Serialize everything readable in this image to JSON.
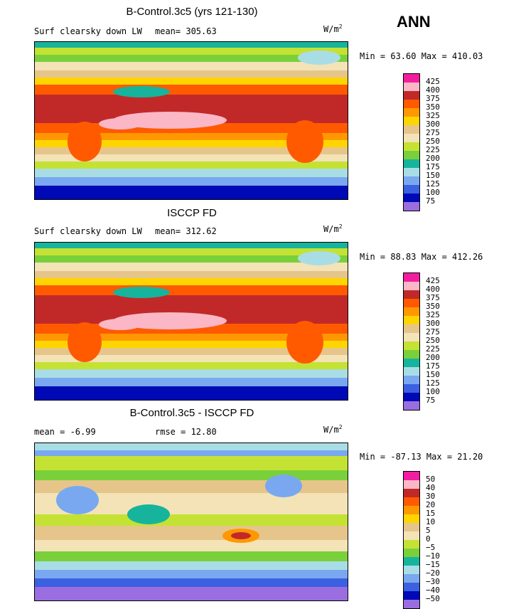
{
  "season": "ANN",
  "panels": [
    {
      "title": "B-Control.3c5 (yrs 121-130)",
      "left_label": "Surf clearsky down LW",
      "mid_label": "mean= 305.63",
      "units": "W/m",
      "units_sup": "2",
      "minmax": "Min =  63.60 Max = 410.03",
      "levels": [
        "425",
        "400",
        "375",
        "350",
        "325",
        "300",
        "275",
        "250",
        "225",
        "200",
        "175",
        "150",
        "125",
        "100",
        "75"
      ],
      "colors": [
        "#f21ea0",
        "#fbb7c6",
        "#c12929",
        "#ff5a00",
        "#ff9800",
        "#ffd500",
        "#e6c58a",
        "#f3e3b7",
        "#c4e234",
        "#7ad03a",
        "#16b49d",
        "#a9dde5",
        "#79a8f0",
        "#3b60e0",
        "#0009b6",
        "#9a6ee0"
      ]
    },
    {
      "title": "ISCCP FD",
      "left_label": "Surf clearsky down LW",
      "mid_label": "mean= 312.62",
      "units": "W/m",
      "units_sup": "2",
      "minmax": "Min =  88.83 Max = 412.26",
      "levels": [
        "425",
        "400",
        "375",
        "350",
        "325",
        "300",
        "275",
        "250",
        "225",
        "200",
        "175",
        "150",
        "125",
        "100",
        "75"
      ],
      "colors": [
        "#f21ea0",
        "#fbb7c6",
        "#c12929",
        "#ff5a00",
        "#ff9800",
        "#ffd500",
        "#e6c58a",
        "#f3e3b7",
        "#c4e234",
        "#7ad03a",
        "#16b49d",
        "#a9dde5",
        "#79a8f0",
        "#3b60e0",
        "#0009b6",
        "#9a6ee0"
      ]
    },
    {
      "title": "B-Control.3c5 - ISCCP FD",
      "left_label": "mean =  -6.99",
      "mid_label": "rmse =  12.80",
      "units": "W/m",
      "units_sup": "2",
      "minmax": "Min = -87.13 Max =  21.20",
      "levels": [
        "50",
        "40",
        "30",
        "20",
        "15",
        "10",
        "5",
        "0",
        "−5",
        "−10",
        "−15",
        "−20",
        "−30",
        "−40",
        "−50"
      ],
      "colors": [
        "#f21ea0",
        "#fbb7c6",
        "#c12929",
        "#ff5a00",
        "#ff9800",
        "#ffd500",
        "#e6c58a",
        "#f3e3b7",
        "#c4e234",
        "#7ad03a",
        "#16b49d",
        "#a9dde5",
        "#79a8f0",
        "#3b60e0",
        "#0009b6",
        "#9a6ee0"
      ]
    }
  ]
}
